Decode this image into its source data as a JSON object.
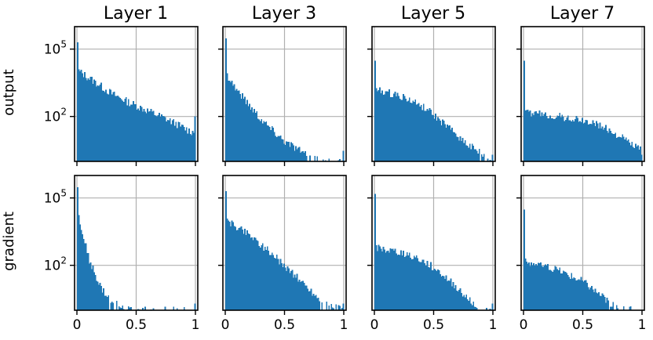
{
  "figure": {
    "column_titles": [
      "Layer 1",
      "Layer 3",
      "Layer 5",
      "Layer 7"
    ],
    "row_labels": [
      "output",
      "gradient"
    ],
    "bar_color": "#1f77b4"
  },
  "chart_data": {
    "type": "histogram-grid",
    "rows": 2,
    "cols": 4,
    "xlim": [
      0,
      1
    ],
    "ylim": [
      1,
      1000000
    ],
    "yscale": "log",
    "grid": true,
    "xticks": [
      0,
      0.5,
      1
    ],
    "xtick_labels": [
      "0",
      "0.5",
      "1"
    ],
    "yticks": [
      100,
      100000
    ],
    "ytick_labels": [
      {
        "base": "10",
        "exp": "2"
      },
      {
        "base": "10",
        "exp": "5"
      }
    ],
    "bins": 100,
    "panels": [
      {
        "row": "output",
        "layer": "Layer 1",
        "spike_at_0": 200000,
        "start": 12000,
        "anchors": [
          [
            0,
            12000
          ],
          [
            0.3,
            1000
          ],
          [
            0.5,
            300
          ],
          [
            0.8,
            60
          ],
          [
            0.97,
            20
          ]
        ],
        "spike_at_1": 100
      },
      {
        "row": "output",
        "layer": "Layer 3",
        "spike_at_0": 300000,
        "start": 9000,
        "anchors": [
          [
            0,
            9000
          ],
          [
            0.1,
            1500
          ],
          [
            0.3,
            80
          ],
          [
            0.5,
            8
          ],
          [
            0.7,
            2
          ],
          [
            0.8,
            1
          ]
        ],
        "spike_at_1": 3
      },
      {
        "row": "output",
        "layer": "Layer 5",
        "spike_at_0": 30000,
        "start": 1500,
        "anchors": [
          [
            0,
            1500
          ],
          [
            0.2,
            900
          ],
          [
            0.4,
            300
          ],
          [
            0.6,
            40
          ],
          [
            0.8,
            5
          ],
          [
            1.0,
            1
          ]
        ],
        "spike_at_1": 2
      },
      {
        "row": "output",
        "layer": "Layer 7",
        "spike_at_0": 30000,
        "start": 150,
        "anchors": [
          [
            0,
            150
          ],
          [
            0.3,
            100
          ],
          [
            0.6,
            50
          ],
          [
            0.8,
            15
          ],
          [
            1.0,
            3
          ]
        ],
        "spike_at_1": 2
      },
      {
        "row": "gradient",
        "layer": "Layer 1",
        "spike_at_0": 300000,
        "start": 30000,
        "anchors": [
          [
            0,
            30000
          ],
          [
            0.05,
            2000
          ],
          [
            0.1,
            200
          ],
          [
            0.2,
            10
          ],
          [
            0.3,
            2
          ],
          [
            0.5,
            1
          ]
        ],
        "spike_at_1": 2
      },
      {
        "row": "gradient",
        "layer": "Layer 3",
        "spike_at_0": 200000,
        "start": 10000,
        "anchors": [
          [
            0,
            10000
          ],
          [
            0.2,
            2500
          ],
          [
            0.4,
            300
          ],
          [
            0.6,
            30
          ],
          [
            0.8,
            3
          ],
          [
            1.0,
            1
          ]
        ],
        "spike_at_1": 2
      },
      {
        "row": "gradient",
        "layer": "Layer 5",
        "spike_at_0": 150000,
        "start": 600,
        "anchors": [
          [
            0,
            600
          ],
          [
            0.3,
            300
          ],
          [
            0.5,
            80
          ],
          [
            0.7,
            10
          ],
          [
            0.9,
            1
          ]
        ],
        "spike_at_1": 2
      },
      {
        "row": "gradient",
        "layer": "Layer 7",
        "spike_at_0": 30000,
        "start": 150,
        "anchors": [
          [
            0,
            150
          ],
          [
            0.3,
            60
          ],
          [
            0.5,
            20
          ],
          [
            0.7,
            3
          ],
          [
            0.8,
            1
          ]
        ],
        "spike_at_1": 0
      }
    ]
  }
}
